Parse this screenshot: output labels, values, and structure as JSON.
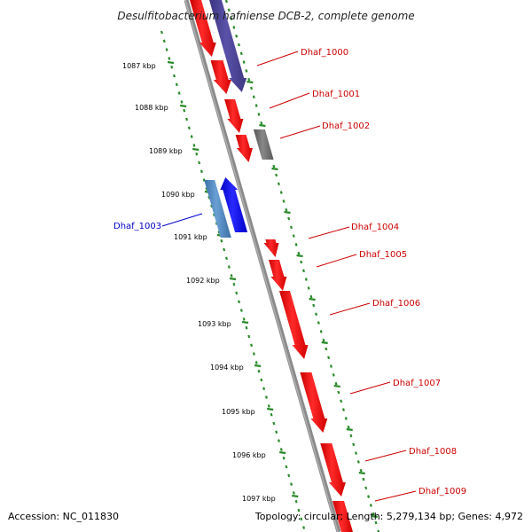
{
  "title": "Desulfitobacterium hafniense DCB-2, complete genome",
  "footer": {
    "accession": "Accession: NC_011830",
    "summary": "Topology: circular; Length: 5,279,134 bp; Genes: 4,972"
  },
  "colors": {
    "backbone": "#8a8a8a",
    "tick": "#2a8a2a",
    "gene_red": "#ff1a1a",
    "gene_purple": "#4b4496",
    "gene_gray": "#6e6e6e",
    "gene_steelblue": "#4a86c0",
    "gene_blue": "#1010f0",
    "label_red": "#cc0000",
    "label_blue": "#0000cc"
  },
  "kbp_labels": [
    "1087 kbp",
    "1088 kbp",
    "1089 kbp",
    "1090 kbp",
    "1091 kbp",
    "1092 kbp",
    "1093 kbp",
    "1094 kbp",
    "1095 kbp",
    "1096 kbp",
    "1097 kbp"
  ],
  "gene_labels": [
    "Dhaf_1000",
    "Dhaf_1001",
    "Dhaf_1002",
    "Dhaf_1003",
    "Dhaf_1004",
    "Dhaf_1005",
    "Dhaf_1006",
    "Dhaf_1007",
    "Dhaf_1008",
    "Dhaf_1009"
  ]
}
